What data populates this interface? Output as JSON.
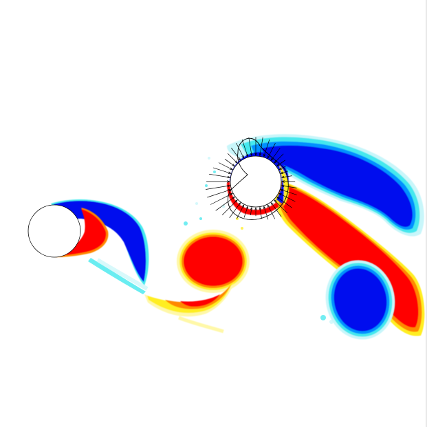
{
  "figure": {
    "kind": "vorticity-contour-field",
    "colors": {
      "background": "#ffffff",
      "positive_strong": "#ff0000",
      "positive_mid": "#ff8800",
      "positive_weak": "#ffee22",
      "positive_faint": "#fff8a8",
      "negative_strong": "#0010ee",
      "negative_mid": "#0090ff",
      "negative_weak": "#44e8ee",
      "negative_faint": "#c8f6fa",
      "body_fill": "#ffffff",
      "body_outline": "#000000",
      "arrow": "#000000",
      "frame": "#d0d0d0"
    },
    "bodies": [
      "left-cylinder",
      "right-cylinder"
    ],
    "overlay": "pressure-force-arrows"
  }
}
